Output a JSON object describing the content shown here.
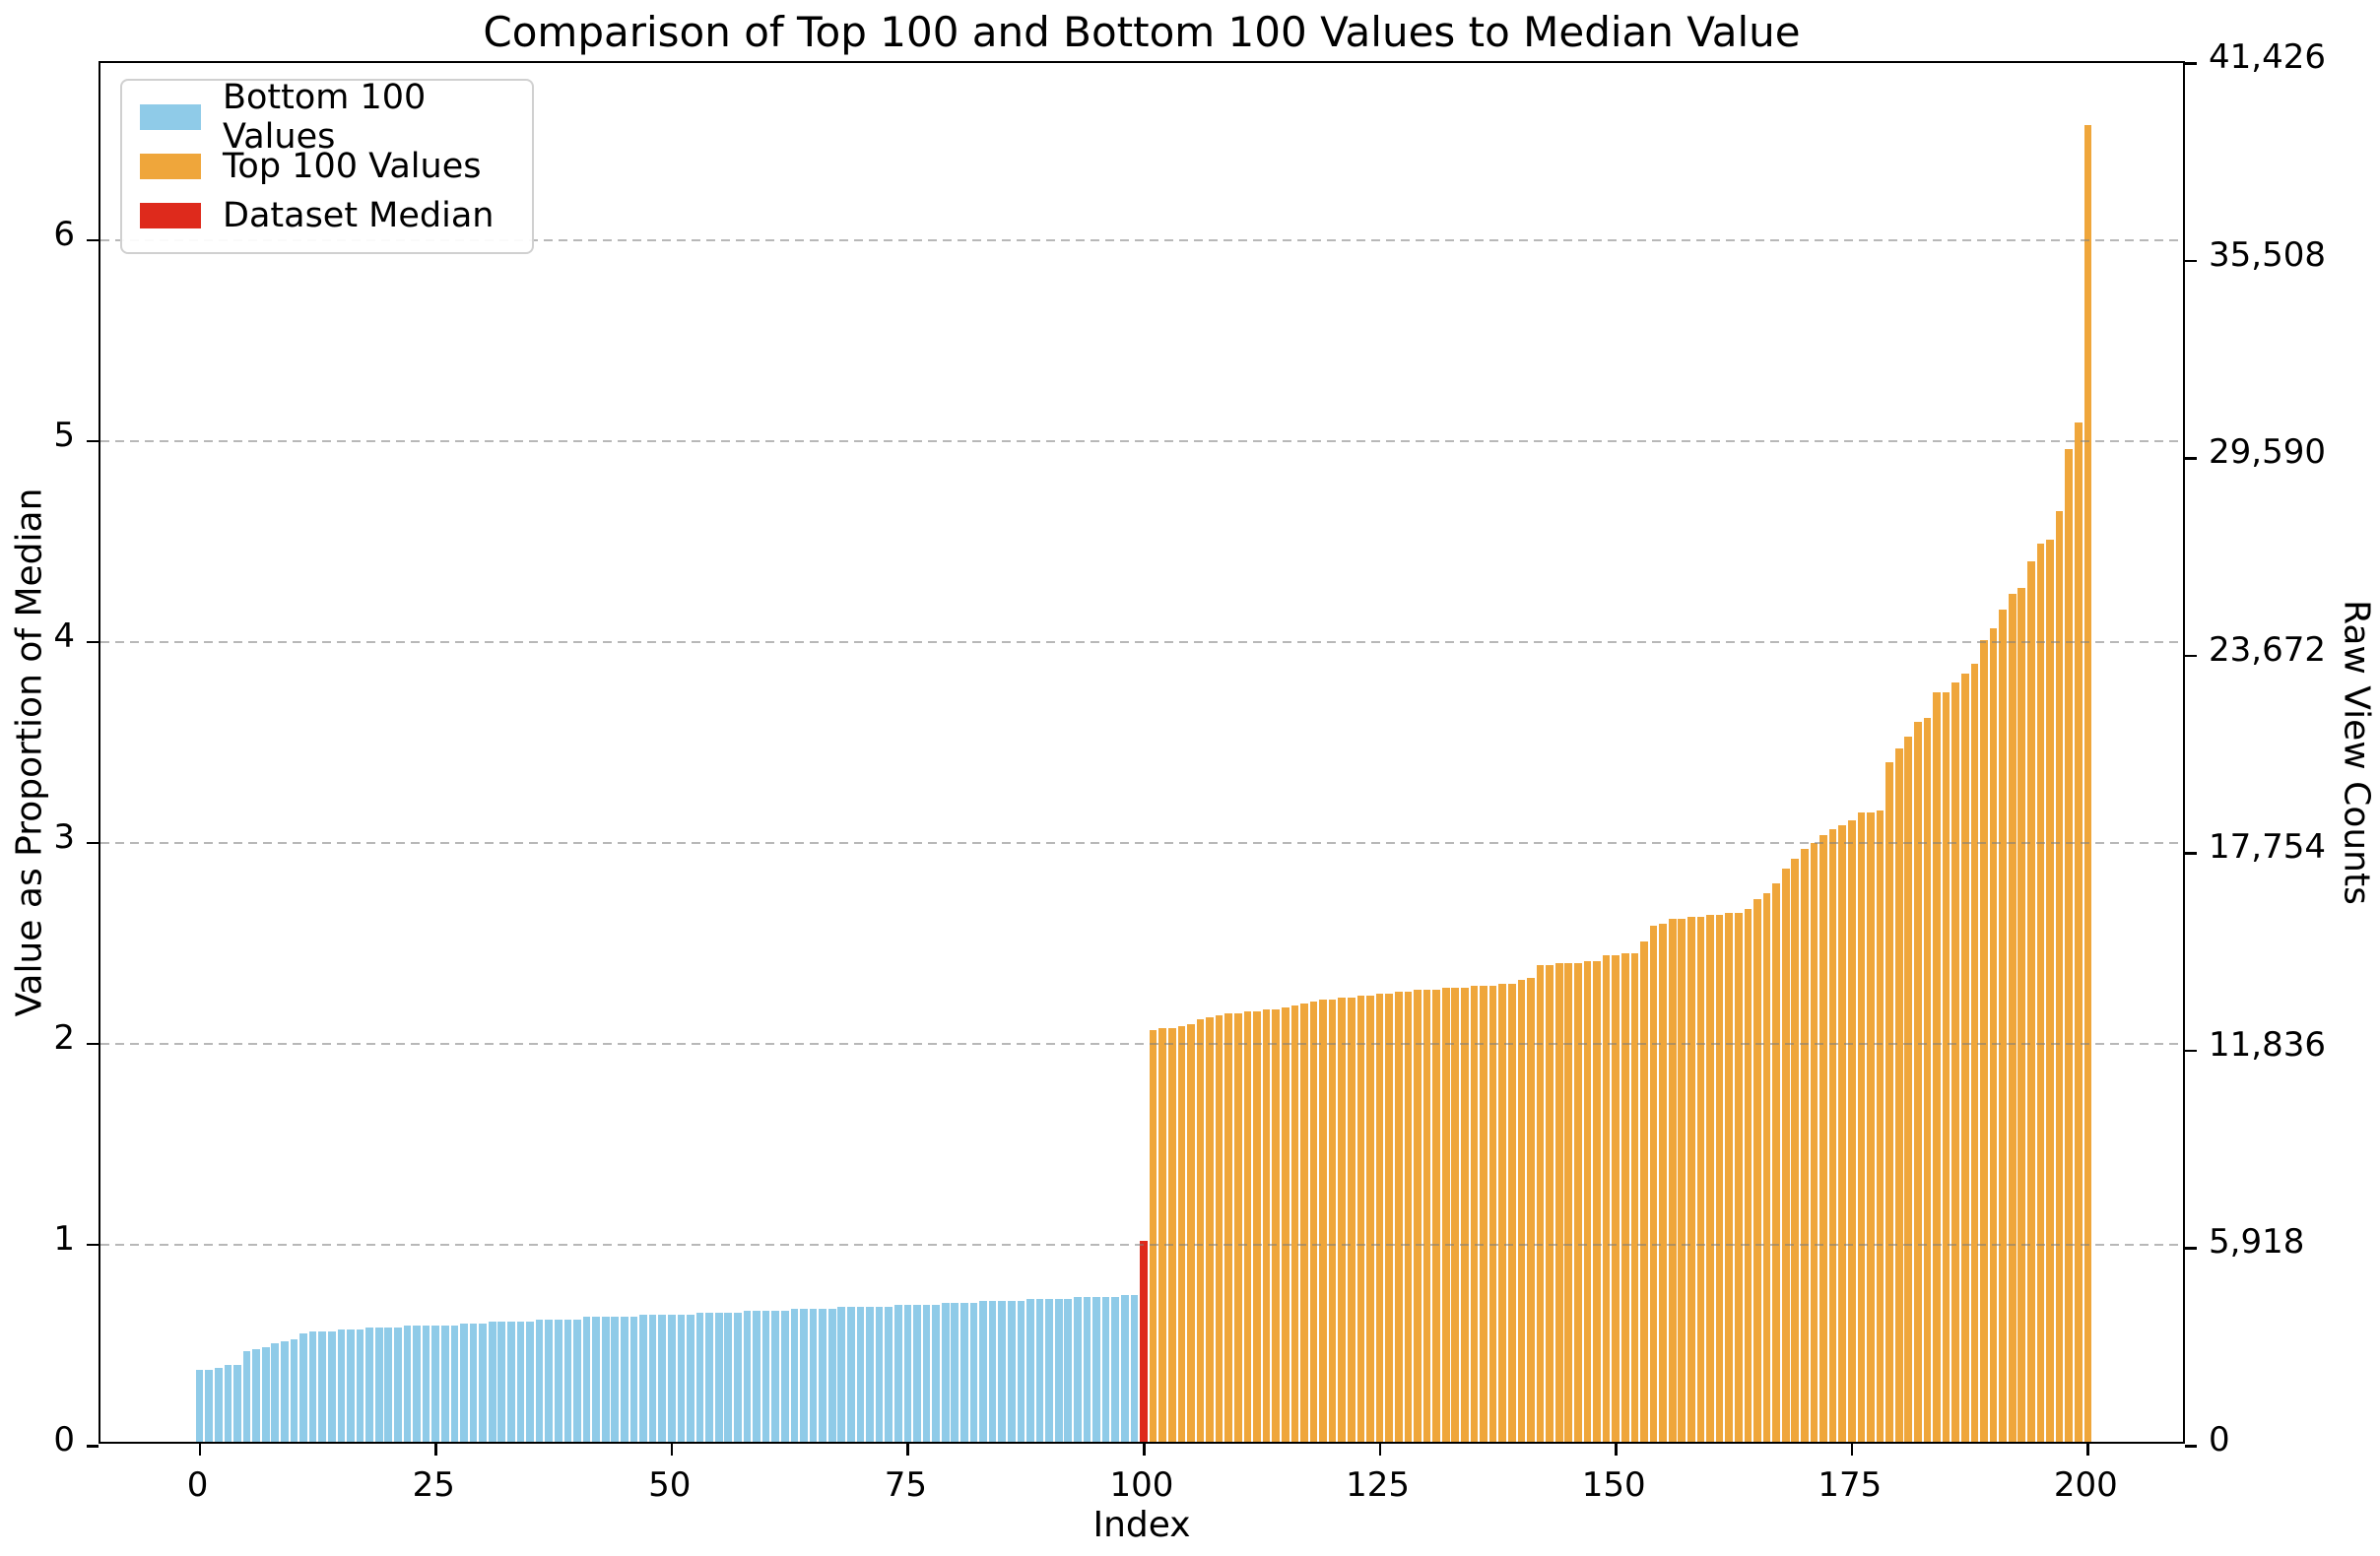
{
  "chart_data": {
    "type": "bar",
    "title": "Comparison of Top 100 and Bottom 100 Values to Median Value",
    "xlabel": "Index",
    "ylabel_left": "Value as Proportion of Median",
    "ylabel_right": "Raw View Counts",
    "xlim": [
      -10.5,
      210.5
    ],
    "ylim_left": [
      0,
      6.88
    ],
    "ylim_right": [
      0,
      41426
    ],
    "x_ticks": [
      0,
      25,
      50,
      75,
      100,
      125,
      150,
      175,
      200
    ],
    "y_ticks_left": [
      "0",
      "1",
      "2",
      "3",
      "4",
      "5",
      "6"
    ],
    "y_ticks_left_values": [
      0,
      1,
      2,
      3,
      4,
      5,
      6
    ],
    "y_ticks_right_labels": [
      "0",
      "5,918",
      "11,836",
      "17,754",
      "23,672",
      "29,590",
      "35,508",
      "41,426"
    ],
    "y_ticks_right_values": [
      0,
      5918,
      11836,
      17754,
      23672,
      29590,
      35508,
      41426
    ],
    "grid": {
      "axis": "y",
      "style": "dashed",
      "color": "#7d7d7d",
      "above_bars": true
    },
    "median_raw_count": 5918,
    "bar_width_index_units": 0.8,
    "legend": [
      {
        "label": "Bottom 100 Values",
        "color": "#8fcbe8"
      },
      {
        "label": "Top 100 Values",
        "color": "#efa63b"
      },
      {
        "label": "Dataset Median",
        "color": "#de2a1c"
      }
    ],
    "series": [
      {
        "name": "Bottom 100 Values",
        "color": "#8fcbe8",
        "start_index": 0,
        "values": [
          0.36,
          0.36,
          0.37,
          0.38,
          0.38,
          0.45,
          0.46,
          0.47,
          0.49,
          0.5,
          0.51,
          0.54,
          0.55,
          0.55,
          0.55,
          0.56,
          0.56,
          0.56,
          0.57,
          0.57,
          0.57,
          0.57,
          0.58,
          0.58,
          0.58,
          0.58,
          0.58,
          0.58,
          0.59,
          0.59,
          0.59,
          0.6,
          0.6,
          0.6,
          0.6,
          0.6,
          0.61,
          0.61,
          0.61,
          0.61,
          0.61,
          0.62,
          0.62,
          0.62,
          0.62,
          0.62,
          0.62,
          0.63,
          0.63,
          0.63,
          0.63,
          0.63,
          0.63,
          0.64,
          0.64,
          0.64,
          0.64,
          0.64,
          0.65,
          0.65,
          0.65,
          0.65,
          0.65,
          0.66,
          0.66,
          0.66,
          0.66,
          0.66,
          0.67,
          0.67,
          0.67,
          0.67,
          0.67,
          0.67,
          0.68,
          0.68,
          0.68,
          0.68,
          0.68,
          0.69,
          0.69,
          0.69,
          0.69,
          0.7,
          0.7,
          0.7,
          0.7,
          0.7,
          0.71,
          0.71,
          0.71,
          0.71,
          0.71,
          0.72,
          0.72,
          0.72,
          0.72,
          0.72,
          0.73,
          0.73
        ]
      },
      {
        "name": "Dataset Median",
        "color": "#de2a1c",
        "start_index": 100,
        "values": [
          1.0
        ]
      },
      {
        "name": "Top 100 Values",
        "color": "#efa63b",
        "start_index": 101,
        "values": [
          2.05,
          2.06,
          2.06,
          2.07,
          2.08,
          2.1,
          2.11,
          2.12,
          2.13,
          2.13,
          2.14,
          2.14,
          2.15,
          2.15,
          2.16,
          2.17,
          2.18,
          2.19,
          2.2,
          2.2,
          2.21,
          2.21,
          2.22,
          2.22,
          2.23,
          2.23,
          2.24,
          2.24,
          2.25,
          2.25,
          2.25,
          2.26,
          2.26,
          2.26,
          2.27,
          2.27,
          2.27,
          2.28,
          2.28,
          2.3,
          2.31,
          2.37,
          2.37,
          2.38,
          2.38,
          2.38,
          2.39,
          2.39,
          2.42,
          2.42,
          2.43,
          2.43,
          2.49,
          2.57,
          2.58,
          2.6,
          2.6,
          2.61,
          2.61,
          2.62,
          2.62,
          2.63,
          2.63,
          2.65,
          2.7,
          2.73,
          2.78,
          2.85,
          2.9,
          2.95,
          2.98,
          3.02,
          3.05,
          3.07,
          3.09,
          3.13,
          3.13,
          3.14,
          3.38,
          3.45,
          3.51,
          3.58,
          3.6,
          3.73,
          3.73,
          3.78,
          3.82,
          3.87,
          3.99,
          4.05,
          4.14,
          4.22,
          4.25,
          4.38,
          4.47,
          4.49,
          4.63,
          4.94,
          5.07,
          6.55
        ]
      }
    ]
  }
}
